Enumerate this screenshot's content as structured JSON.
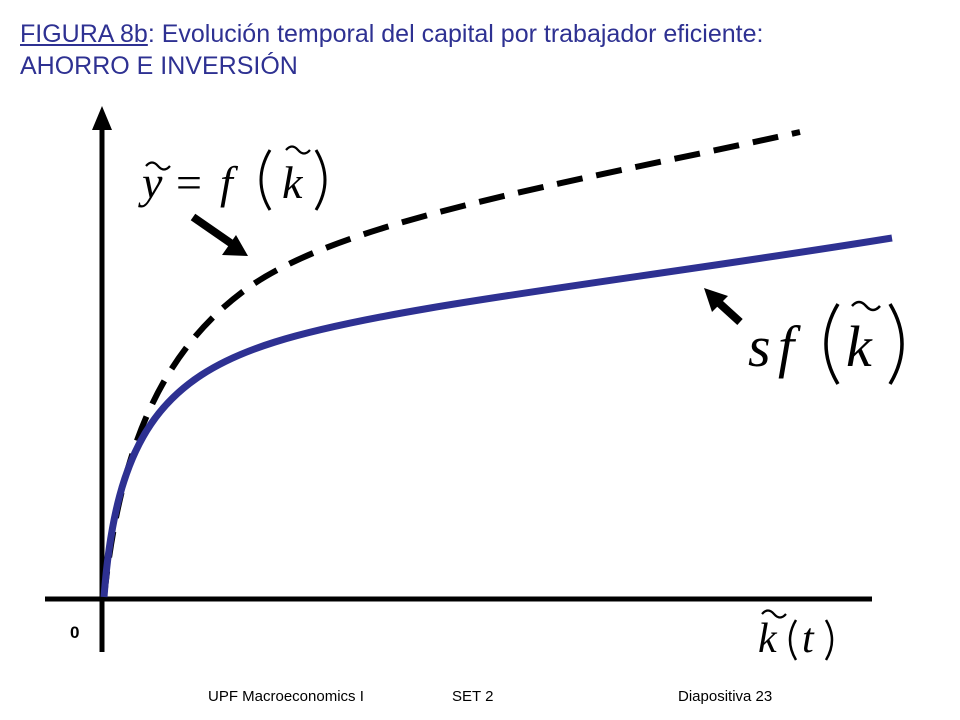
{
  "slide": {
    "title_figref": "FIGURA 8b",
    "title_rest": ": Evolución temporal del capital por trabajador eficiente:",
    "title_line2": "AHORRO E INVERSIÓN"
  },
  "diagram": {
    "origin_label": "0",
    "label_output": {
      "y": "y",
      "eq": "=",
      "f": "f",
      "k": "k"
    },
    "label_saving": {
      "s": "s",
      "f": "f",
      "k": "k"
    },
    "x_axis_label": {
      "k": "k",
      "t": "t"
    },
    "curve_colors": {
      "production": "#000000",
      "saving": "#2e3192"
    }
  },
  "footer": {
    "left": "UPF Macroeconomics I",
    "center": "SET 2",
    "right": "Diapositiva 23"
  }
}
